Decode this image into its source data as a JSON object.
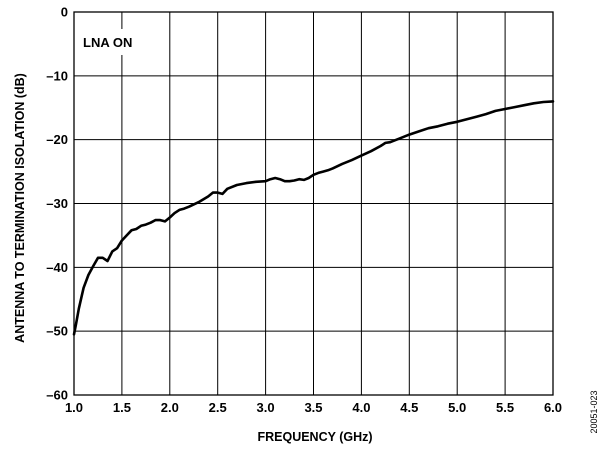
{
  "chart_data": {
    "type": "line",
    "title": "",
    "xlabel": "FREQUENCY (GHz)",
    "ylabel": "ANTENNA TO TERMINATION ISOLATION (dB)",
    "xlim": [
      1.0,
      6.0
    ],
    "ylim": [
      -60,
      0
    ],
    "xticks": [
      1.0,
      1.5,
      2.0,
      2.5,
      3.0,
      3.5,
      4.0,
      4.5,
      5.0,
      5.5,
      6.0
    ],
    "xtick_labels": [
      "1.0",
      "1.5",
      "2.0",
      "2.5",
      "3.0",
      "3.5",
      "4.0",
      "4.5",
      "5.0",
      "5.5",
      "6.0"
    ],
    "yticks": [
      0,
      -10,
      -20,
      -30,
      -40,
      -50,
      -60
    ],
    "ytick_labels": [
      "0",
      "–10",
      "–20",
      "–30",
      "–40",
      "–50",
      "–60"
    ],
    "grid": true,
    "annotation": "LNA ON",
    "figure_id": "20051-023",
    "series": [
      {
        "line_color": "#000000",
        "x": [
          1.0,
          1.02,
          1.05,
          1.08,
          1.1,
          1.15,
          1.2,
          1.25,
          1.3,
          1.35,
          1.4,
          1.45,
          1.5,
          1.55,
          1.6,
          1.65,
          1.7,
          1.75,
          1.8,
          1.85,
          1.9,
          1.95,
          2.0,
          2.05,
          2.1,
          2.15,
          2.2,
          2.3,
          2.4,
          2.45,
          2.5,
          2.55,
          2.6,
          2.7,
          2.8,
          2.9,
          3.0,
          3.05,
          3.1,
          3.15,
          3.2,
          3.25,
          3.3,
          3.35,
          3.4,
          3.45,
          3.5,
          3.55,
          3.6,
          3.65,
          3.7,
          3.8,
          3.9,
          4.0,
          4.1,
          4.2,
          4.25,
          4.3,
          4.4,
          4.5,
          4.6,
          4.7,
          4.8,
          4.9,
          5.0,
          5.1,
          5.2,
          5.3,
          5.4,
          5.5,
          5.6,
          5.7,
          5.8,
          5.9,
          6.0
        ],
        "y": [
          -50.5,
          -49.0,
          -46.5,
          -44.5,
          -43.2,
          -41.2,
          -39.8,
          -38.5,
          -38.5,
          -39.0,
          -37.5,
          -37.0,
          -35.8,
          -35.0,
          -34.2,
          -34.0,
          -33.5,
          -33.3,
          -33.0,
          -32.6,
          -32.6,
          -32.8,
          -32.2,
          -31.5,
          -31.0,
          -30.8,
          -30.5,
          -29.8,
          -28.9,
          -28.3,
          -28.3,
          -28.5,
          -27.7,
          -27.1,
          -26.8,
          -26.6,
          -26.5,
          -26.2,
          -26.0,
          -26.2,
          -26.5,
          -26.5,
          -26.4,
          -26.2,
          -26.3,
          -26.0,
          -25.5,
          -25.2,
          -25.0,
          -24.8,
          -24.5,
          -23.8,
          -23.2,
          -22.5,
          -21.8,
          -21.0,
          -20.5,
          -20.4,
          -19.8,
          -19.2,
          -18.7,
          -18.2,
          -17.9,
          -17.5,
          -17.2,
          -16.8,
          -16.4,
          -16.0,
          -15.5,
          -15.2,
          -14.9,
          -14.6,
          -14.3,
          -14.1,
          -14.0
        ]
      }
    ]
  }
}
